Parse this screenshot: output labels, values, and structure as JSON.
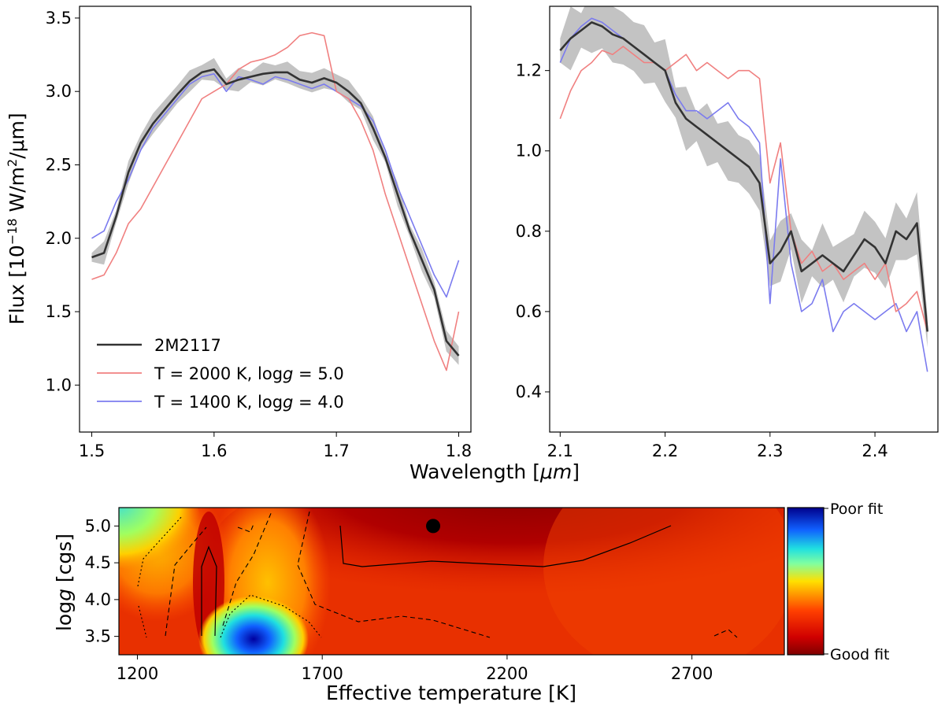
{
  "chart_data": [
    {
      "type": "line",
      "panel": "top-left",
      "ylabel": "Flux [10^-18 W/m^2/μm]",
      "ylabel_parts": {
        "prefix": "Flux [10",
        "exp1": "−18",
        "mid": " W/m",
        "exp2": "2",
        "suffix": "/μm]"
      },
      "xlim": [
        1.49,
        1.81
      ],
      "ylim": [
        0.68,
        3.58
      ],
      "xticks": [
        1.5,
        1.6,
        1.7,
        1.8
      ],
      "xtick_labels": [
        "1.5",
        "1.6",
        "1.7",
        "1.8"
      ],
      "yticks": [
        1.0,
        1.5,
        2.0,
        2.5,
        3.0,
        3.5
      ],
      "ytick_labels": [
        "1.0",
        "1.5",
        "2.0",
        "2.5",
        "3.0",
        "3.5"
      ],
      "legend": {
        "position": "lower-left",
        "entries": [
          {
            "label": "2M2117",
            "color": "#333333"
          },
          {
            "label": "T = 2000 K, log g = 5.0",
            "color": "#f08080"
          },
          {
            "label": "T = 1400 K, log g = 4.0",
            "color": "#7b7bef"
          }
        ]
      },
      "series": [
        {
          "name": "2M2117",
          "color": "#333333",
          "x": [
            1.5,
            1.51,
            1.52,
            1.53,
            1.54,
            1.55,
            1.56,
            1.57,
            1.58,
            1.59,
            1.6,
            1.61,
            1.62,
            1.63,
            1.64,
            1.65,
            1.66,
            1.67,
            1.68,
            1.69,
            1.7,
            1.71,
            1.72,
            1.73,
            1.74,
            1.75,
            1.76,
            1.77,
            1.78,
            1.79,
            1.8
          ],
          "y": [
            1.87,
            1.9,
            2.15,
            2.45,
            2.65,
            2.78,
            2.88,
            2.98,
            3.07,
            3.13,
            3.15,
            3.05,
            3.08,
            3.1,
            3.12,
            3.13,
            3.13,
            3.08,
            3.06,
            3.09,
            3.06,
            3.0,
            2.92,
            2.75,
            2.55,
            2.3,
            2.05,
            1.85,
            1.65,
            1.3,
            1.2
          ]
        },
        {
          "name": "T = 2000 K, log g = 5.0",
          "color": "#f08080",
          "x": [
            1.5,
            1.51,
            1.52,
            1.53,
            1.54,
            1.55,
            1.56,
            1.57,
            1.58,
            1.59,
            1.6,
            1.61,
            1.62,
            1.63,
            1.64,
            1.65,
            1.66,
            1.67,
            1.68,
            1.69,
            1.7,
            1.71,
            1.72,
            1.73,
            1.74,
            1.75,
            1.76,
            1.77,
            1.78,
            1.79,
            1.8
          ],
          "y": [
            1.72,
            1.75,
            1.9,
            2.1,
            2.2,
            2.35,
            2.5,
            2.65,
            2.8,
            2.95,
            3.0,
            3.05,
            3.15,
            3.2,
            3.22,
            3.25,
            3.3,
            3.38,
            3.4,
            3.38,
            3.0,
            2.95,
            2.8,
            2.6,
            2.3,
            2.05,
            1.8,
            1.55,
            1.3,
            1.1,
            1.5
          ]
        },
        {
          "name": "T = 1400 K, log g = 4.0",
          "color": "#7b7bef",
          "x": [
            1.5,
            1.51,
            1.52,
            1.53,
            1.54,
            1.55,
            1.56,
            1.57,
            1.58,
            1.59,
            1.6,
            1.61,
            1.62,
            1.63,
            1.64,
            1.65,
            1.66,
            1.67,
            1.68,
            1.69,
            1.7,
            1.71,
            1.72,
            1.73,
            1.74,
            1.75,
            1.76,
            1.77,
            1.78,
            1.79,
            1.8
          ],
          "y": [
            2.0,
            2.05,
            2.25,
            2.4,
            2.6,
            2.75,
            2.85,
            2.95,
            3.05,
            3.1,
            3.12,
            3.0,
            3.1,
            3.08,
            3.05,
            3.1,
            3.08,
            3.05,
            3.02,
            3.05,
            3.0,
            2.95,
            2.9,
            2.8,
            2.6,
            2.35,
            2.15,
            1.95,
            1.75,
            1.6,
            1.85
          ]
        }
      ]
    },
    {
      "type": "line",
      "panel": "top-right",
      "xlim": [
        2.09,
        2.46
      ],
      "ylim": [
        0.3,
        1.36
      ],
      "xticks": [
        2.1,
        2.2,
        2.3,
        2.4
      ],
      "xtick_labels": [
        "2.1",
        "2.2",
        "2.3",
        "2.4"
      ],
      "yticks": [
        0.4,
        0.6,
        0.8,
        1.0,
        1.2
      ],
      "ytick_labels": [
        "0.4",
        "0.6",
        "0.8",
        "1.0",
        "1.2"
      ],
      "series": [
        {
          "name": "2M2117",
          "color": "#333333",
          "x": [
            2.1,
            2.11,
            2.12,
            2.13,
            2.14,
            2.15,
            2.16,
            2.17,
            2.18,
            2.19,
            2.2,
            2.21,
            2.22,
            2.23,
            2.24,
            2.25,
            2.26,
            2.27,
            2.28,
            2.29,
            2.3,
            2.31,
            2.32,
            2.33,
            2.34,
            2.35,
            2.36,
            2.37,
            2.38,
            2.39,
            2.4,
            2.41,
            2.42,
            2.43,
            2.44,
            2.45
          ],
          "y": [
            1.25,
            1.28,
            1.3,
            1.32,
            1.31,
            1.29,
            1.28,
            1.26,
            1.24,
            1.22,
            1.2,
            1.12,
            1.08,
            1.06,
            1.04,
            1.02,
            1.0,
            0.98,
            0.96,
            0.92,
            0.72,
            0.75,
            0.8,
            0.7,
            0.72,
            0.74,
            0.72,
            0.7,
            0.74,
            0.78,
            0.76,
            0.72,
            0.8,
            0.78,
            0.82,
            0.55
          ]
        },
        {
          "name": "T = 2000 K, log g = 5.0",
          "color": "#f08080",
          "x": [
            2.1,
            2.11,
            2.12,
            2.13,
            2.14,
            2.15,
            2.16,
            2.17,
            2.18,
            2.19,
            2.2,
            2.21,
            2.22,
            2.23,
            2.24,
            2.25,
            2.26,
            2.27,
            2.28,
            2.29,
            2.3,
            2.31,
            2.32,
            2.33,
            2.34,
            2.35,
            2.36,
            2.37,
            2.38,
            2.39,
            2.4,
            2.41,
            2.42,
            2.43,
            2.44,
            2.45
          ],
          "y": [
            1.08,
            1.15,
            1.2,
            1.22,
            1.25,
            1.24,
            1.26,
            1.24,
            1.22,
            1.22,
            1.2,
            1.22,
            1.24,
            1.2,
            1.22,
            1.2,
            1.18,
            1.2,
            1.2,
            1.18,
            0.92,
            1.02,
            0.8,
            0.72,
            0.75,
            0.7,
            0.72,
            0.68,
            0.7,
            0.72,
            0.68,
            0.72,
            0.6,
            0.62,
            0.65,
            0.55
          ]
        },
        {
          "name": "T = 1400 K, log g = 4.0",
          "color": "#7b7bef",
          "x": [
            2.1,
            2.11,
            2.12,
            2.13,
            2.14,
            2.15,
            2.16,
            2.17,
            2.18,
            2.19,
            2.2,
            2.21,
            2.22,
            2.23,
            2.24,
            2.25,
            2.26,
            2.27,
            2.28,
            2.29,
            2.3,
            2.31,
            2.32,
            2.33,
            2.34,
            2.35,
            2.36,
            2.37,
            2.38,
            2.39,
            2.4,
            2.41,
            2.42,
            2.43,
            2.44,
            2.45
          ],
          "y": [
            1.22,
            1.28,
            1.31,
            1.33,
            1.32,
            1.3,
            1.28,
            1.26,
            1.24,
            1.22,
            1.2,
            1.14,
            1.1,
            1.1,
            1.08,
            1.1,
            1.12,
            1.08,
            1.06,
            1.02,
            0.62,
            0.98,
            0.72,
            0.6,
            0.62,
            0.68,
            0.55,
            0.6,
            0.62,
            0.6,
            0.58,
            0.6,
            0.62,
            0.55,
            0.6,
            0.45
          ]
        }
      ]
    },
    {
      "type": "heatmap",
      "panel": "bottom",
      "xlabel": "Effective temperature [K]",
      "ylabel": "log g [cgs]",
      "ylabel_parts": {
        "prefix": "log",
        "italic": "g",
        "suffix": " [cgs]"
      },
      "xlim": [
        1150,
        2950
      ],
      "ylim": [
        3.25,
        5.25
      ],
      "xticks": [
        1200,
        1700,
        2200,
        2700
      ],
      "xtick_labels": [
        "1200",
        "1700",
        "2200",
        "2700"
      ],
      "yticks": [
        3.5,
        4.0,
        4.5,
        5.0
      ],
      "ytick_labels": [
        "3.5",
        "4.0",
        "4.5",
        "5.0"
      ],
      "best_fit": {
        "teff": 2000,
        "logg": 5.0
      },
      "colorbar": {
        "top_label": "Poor fit",
        "bottom_label": "Good fit"
      }
    }
  ],
  "shared_xlabel": "Wavelength [μm]",
  "shared_xlabel_parts": {
    "prefix": "Wavelength [",
    "unit": "μm",
    "suffix": "]"
  }
}
